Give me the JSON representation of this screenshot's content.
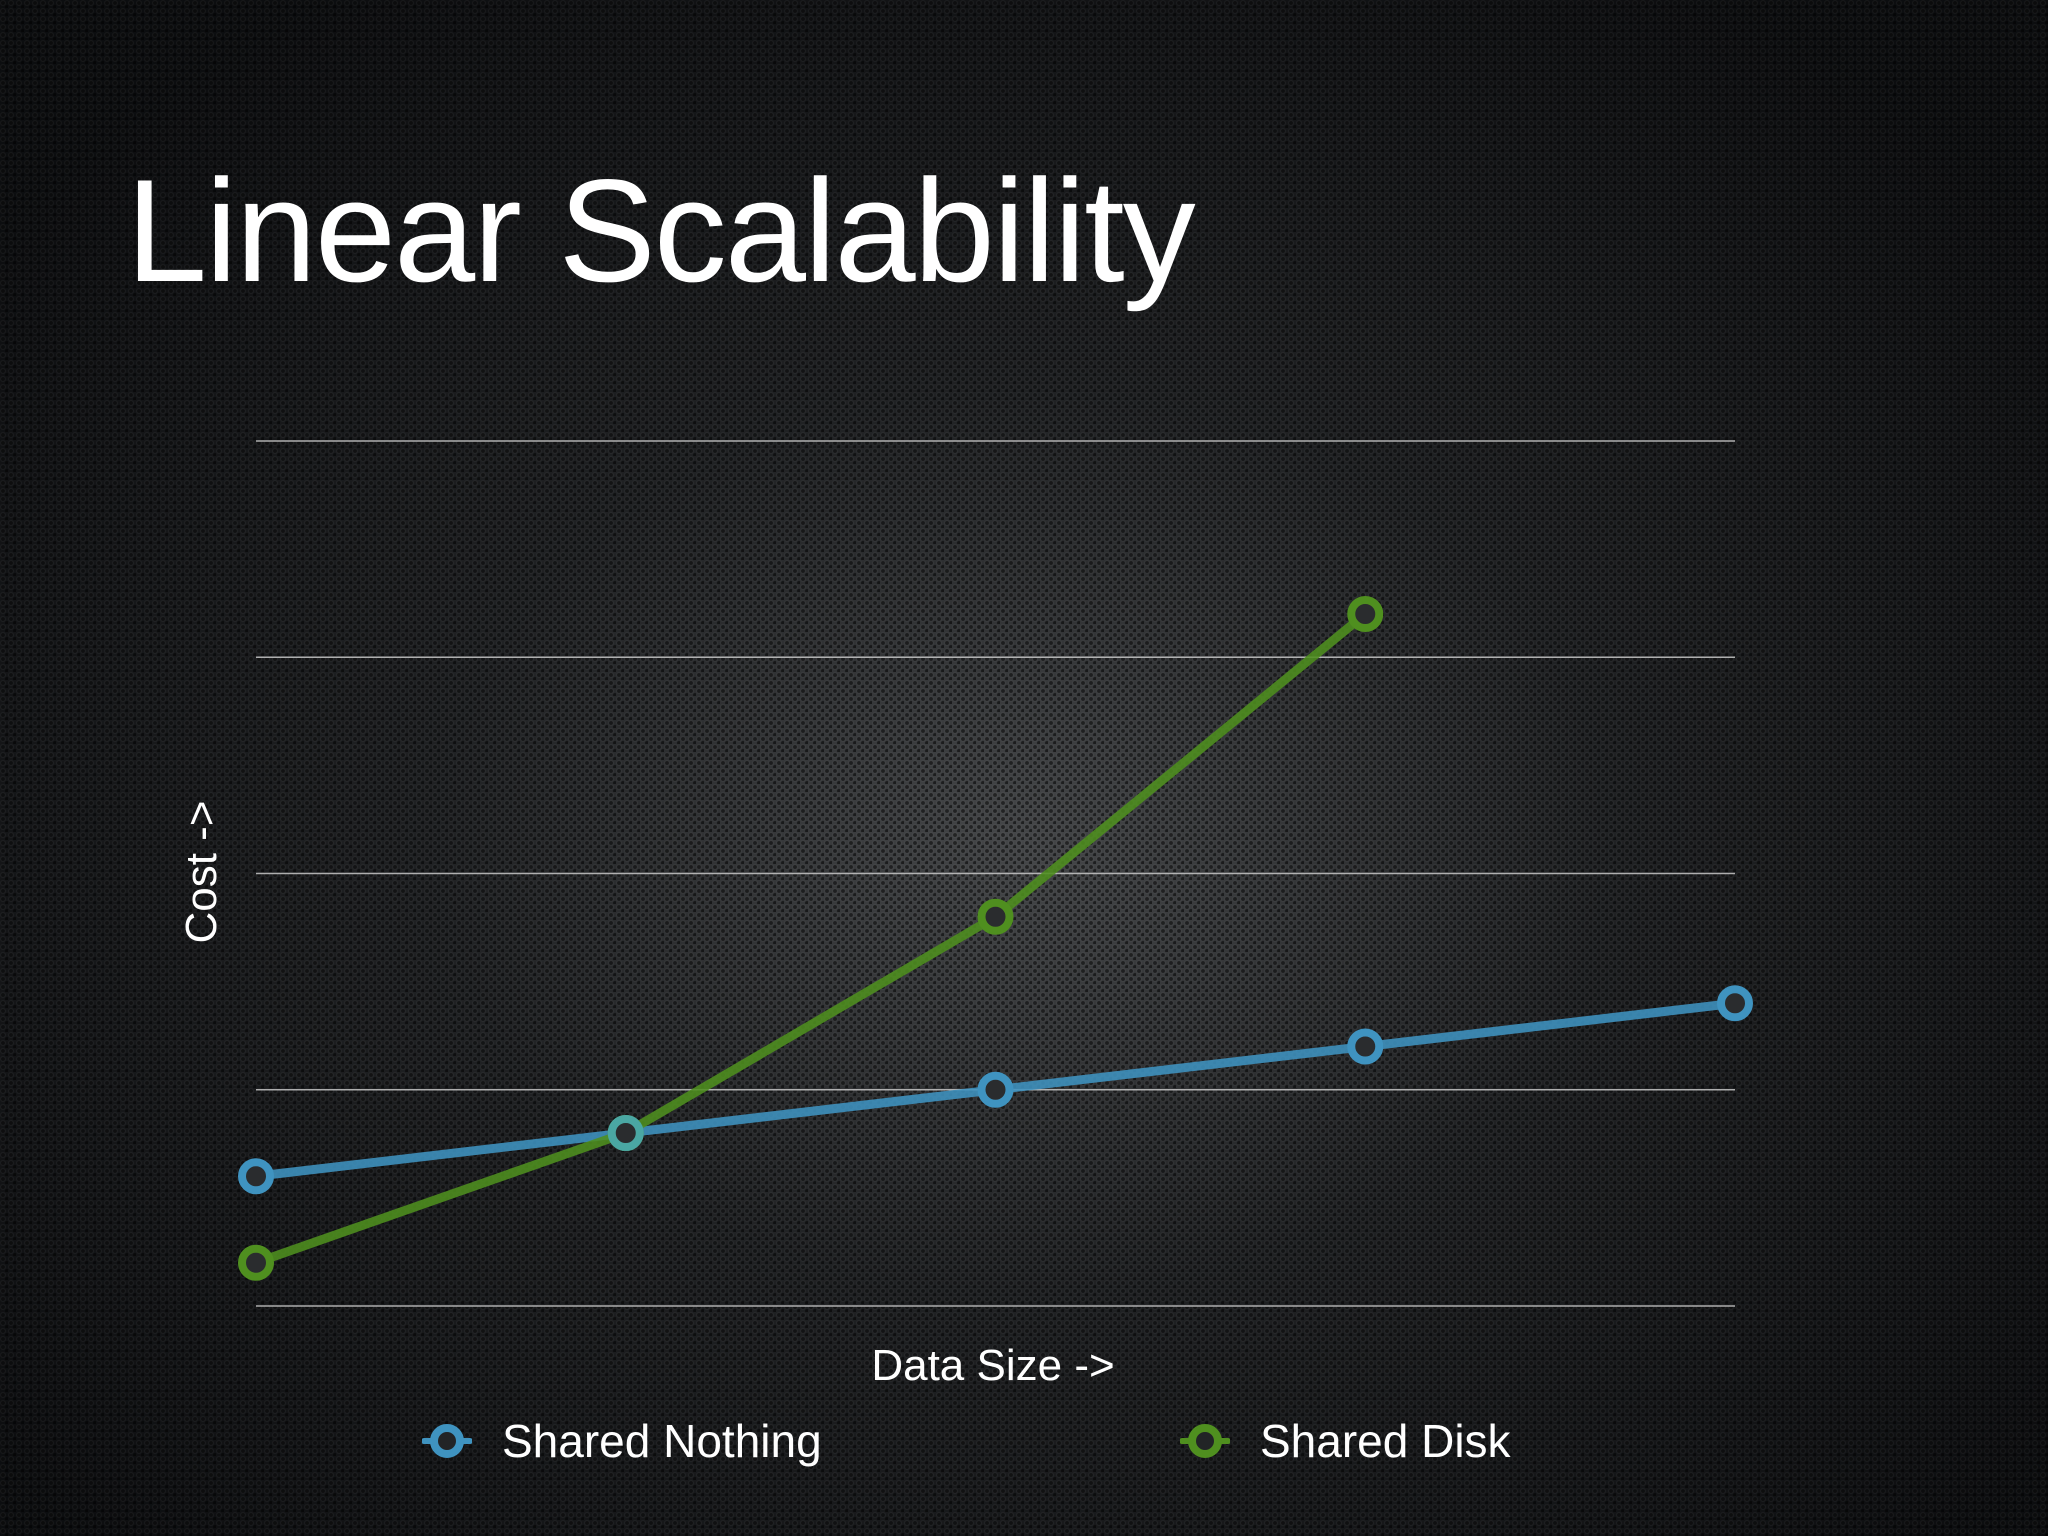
{
  "slide": {
    "title": "Linear Scalability"
  },
  "chart_data": {
    "type": "line",
    "x": [
      1,
      2,
      3,
      4,
      5
    ],
    "xlabel": "Data Size ->",
    "ylabel": "Cost ->",
    "ylim": [
      0,
      4
    ],
    "xlim": [
      1,
      5
    ],
    "grid": true,
    "x_tick_labels": false,
    "y_tick_labels": false,
    "legend_position": "bottom",
    "series": [
      {
        "name": "Shared Nothing",
        "color": "#3f93c0",
        "values": [
          0.6,
          0.8,
          1.0,
          1.2,
          1.4
        ]
      },
      {
        "name": "Shared Disk",
        "color": "#4f8f1f",
        "values": [
          0.2,
          0.8,
          1.8,
          3.2,
          null
        ]
      }
    ]
  }
}
